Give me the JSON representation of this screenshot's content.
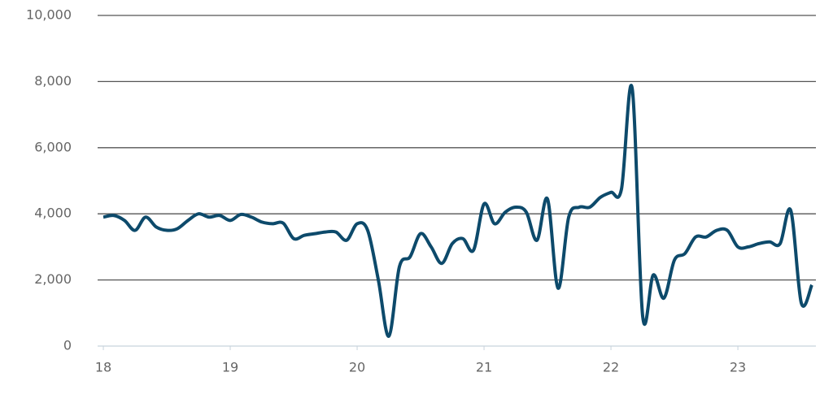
{
  "chart_data": {
    "type": "line",
    "x": [
      18,
      18.083,
      18.167,
      18.25,
      18.333,
      18.417,
      18.5,
      18.583,
      18.667,
      18.75,
      18.833,
      18.917,
      19,
      19.083,
      19.167,
      19.25,
      19.333,
      19.417,
      19.5,
      19.583,
      19.667,
      19.75,
      19.833,
      19.917,
      20,
      20.083,
      20.167,
      20.25,
      20.333,
      20.417,
      20.5,
      20.583,
      20.667,
      20.75,
      20.833,
      20.917,
      21,
      21.083,
      21.167,
      21.25,
      21.333,
      21.417,
      21.5,
      21.583,
      21.667,
      21.75,
      21.833,
      21.917,
      22,
      22.083,
      22.167,
      22.25,
      22.333,
      22.417,
      22.5,
      22.583,
      22.667,
      22.75,
      22.833,
      22.917,
      23,
      23.083,
      23.167,
      23.25,
      23.333,
      23.417,
      23.5,
      23.583
    ],
    "series": [
      {
        "color": "#0d4a6b",
        "values": [
          3900,
          3950,
          3800,
          3500,
          3900,
          3600,
          3500,
          3550,
          3800,
          4000,
          3900,
          3950,
          3800,
          3980,
          3900,
          3750,
          3700,
          3720,
          3250,
          3350,
          3400,
          3450,
          3450,
          3200,
          3700,
          3500,
          2000,
          300,
          2400,
          2700,
          3400,
          3000,
          2500,
          3100,
          3250,
          2900,
          4300,
          3700,
          4050,
          4200,
          4050,
          3200,
          4450,
          1750,
          3900,
          4200,
          4200,
          4500,
          4650,
          4750,
          7800,
          900,
          2150,
          1450,
          2600,
          2800,
          3300,
          3300,
          3500,
          3500,
          3000,
          3000,
          3100,
          3150,
          3100,
          4100,
          1300,
          1850
        ]
      }
    ],
    "xlim": [
      17.955,
      23.615
    ],
    "xticks": [
      18,
      19,
      20,
      21,
      22,
      23
    ],
    "ylim": [
      0,
      10000
    ],
    "yticks": [
      0,
      {
        "value": 2000,
        "label": "2,000"
      },
      {
        "value": 4000,
        "label": "4,000"
      },
      {
        "value": 6000,
        "label": "6,000"
      },
      {
        "value": 8000,
        "label": "8,000"
      },
      {
        "value": 10000,
        "label": "10,000"
      }
    ],
    "grid": true
  }
}
